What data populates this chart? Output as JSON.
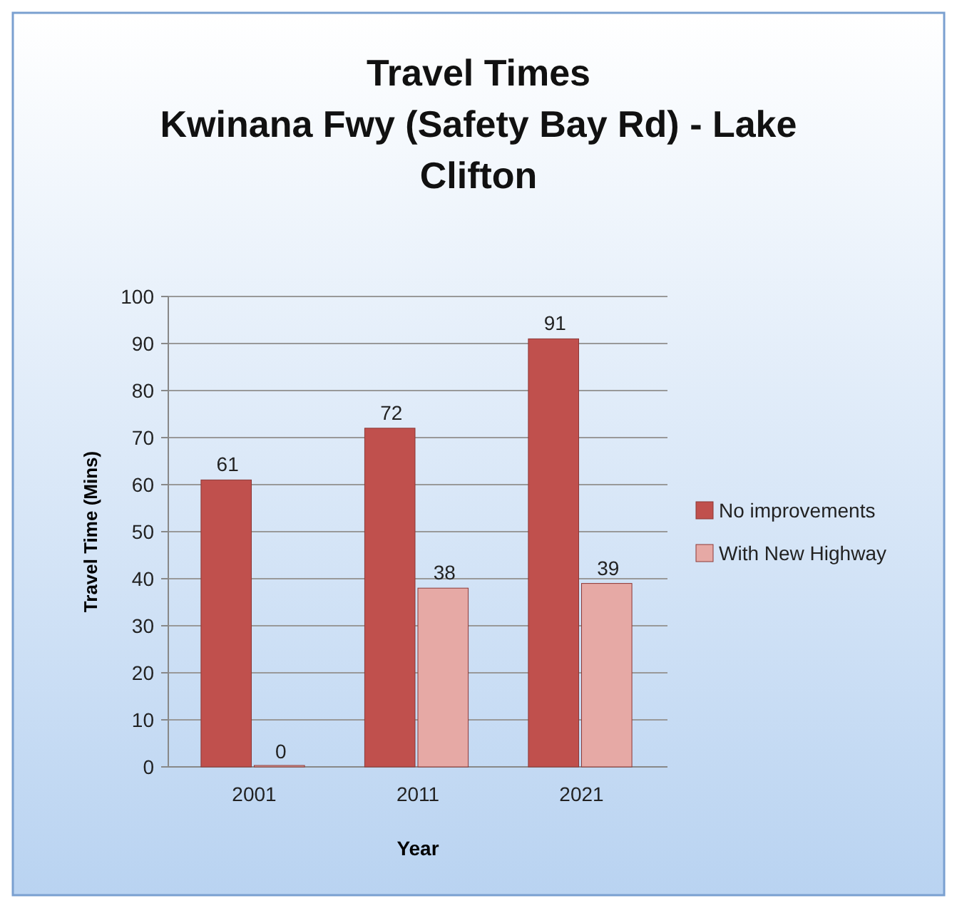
{
  "chart_data": {
    "type": "bar",
    "title": "Travel Times",
    "subtitle": "Kwinana Fwy (Safety Bay Rd) - Lake Clifton",
    "xlabel": "Year",
    "ylabel": "Travel Time (Mins)",
    "categories": [
      "2001",
      "2011",
      "2021"
    ],
    "series": [
      {
        "name": "No improvements",
        "color": "#c0504d",
        "values": [
          61,
          72,
          91
        ]
      },
      {
        "name": "With New Highway",
        "color": "#e6a9a5",
        "values": [
          0,
          38,
          39
        ]
      }
    ],
    "ylim": [
      0,
      100
    ],
    "yticks": [
      0,
      10,
      20,
      30,
      40,
      50,
      60,
      70,
      80,
      90,
      100
    ],
    "grid": "y",
    "legend": "right",
    "data_labels": true
  }
}
